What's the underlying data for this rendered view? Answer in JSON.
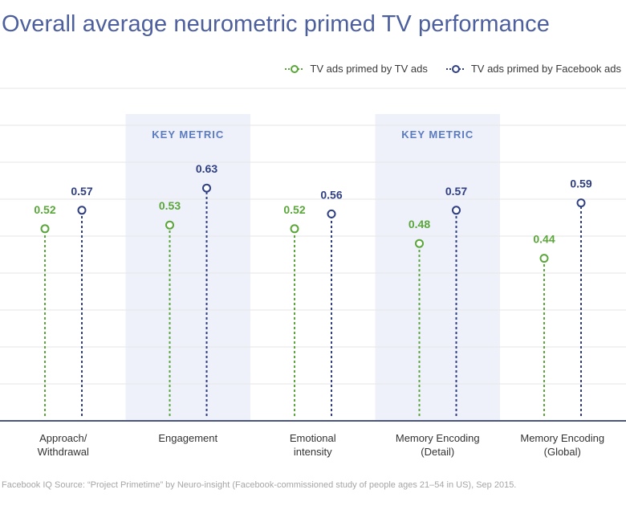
{
  "colors": {
    "title": "#4d5f9c",
    "tv": "#5aa63a",
    "facebook": "#2f3f82",
    "highlight": "#eef1f9",
    "key_metric_text": "#5b7bc0",
    "grid": "#e6e6e6",
    "axis": "#4a5680"
  },
  "source_text": "Facebook IQ Source: “Project Primetime” by Neuro-insight (Facebook-commissioned study of people ages 21–54 in US), Sep 2015.",
  "chart_data": {
    "type": "lollipop",
    "title": "Overall average neurometric primed TV performance",
    "categories": [
      [
        "Approach/",
        "Withdrawal"
      ],
      [
        "Engagement"
      ],
      [
        "Emotional",
        "intensity"
      ],
      [
        "Memory Encoding",
        "(Detail)"
      ],
      [
        "Memory Encoding",
        "(Global)"
      ]
    ],
    "series": [
      {
        "name": "TV ads primed by TV ads",
        "color": "#5aa63a",
        "values": [
          0.52,
          0.53,
          0.52,
          0.48,
          0.44
        ],
        "labels": [
          "0.52",
          "0.53",
          "0.52",
          "0.48",
          "0.44"
        ]
      },
      {
        "name": "TV ads primed by Facebook ads",
        "color": "#2f3f82",
        "values": [
          0.57,
          0.63,
          0.56,
          0.57,
          0.59
        ],
        "labels": [
          "0.57",
          "0.63",
          "0.56",
          "0.57",
          "0.59"
        ]
      }
    ],
    "highlighted_categories": [
      1,
      3
    ],
    "highlight_label": "KEY METRIC",
    "ylim": [
      0,
      0.9
    ],
    "grid": true,
    "y_tick_labels_visible": false,
    "legend_position": "top-right"
  }
}
